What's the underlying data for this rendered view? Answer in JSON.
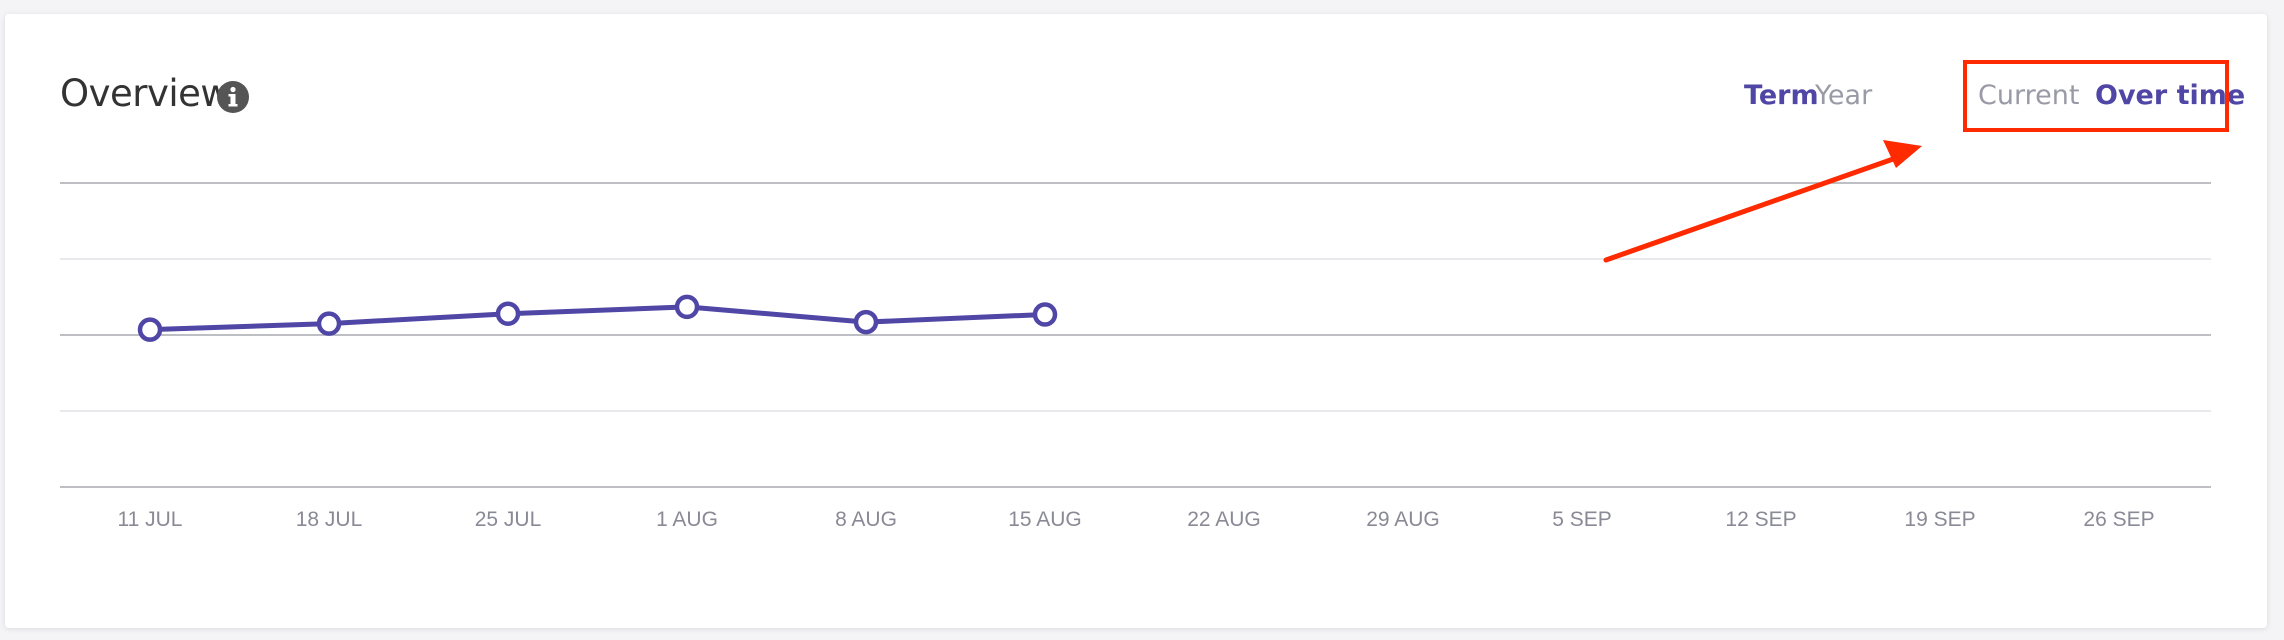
{
  "header": {
    "title": "Overview",
    "info_icon": "info-icon",
    "period_toggle": [
      {
        "label": "Term",
        "active": true
      },
      {
        "label": "Year",
        "active": false
      }
    ],
    "view_toggle": [
      {
        "label": "Current",
        "active": false
      },
      {
        "label": "Over time",
        "active": true
      }
    ]
  },
  "annotation": {
    "color": "#ff2a00"
  },
  "colors": {
    "accent": "#4f46a6",
    "muted": "#9a9aa6"
  },
  "chart_data": {
    "type": "line",
    "title": "",
    "xlabel": "",
    "ylabel": "",
    "x_ticks": [
      "11 JUL",
      "18 JUL",
      "25 JUL",
      "1 AUG",
      "8 AUG",
      "15 AUG",
      "22 AUG",
      "29 AUG",
      "5 SEP",
      "12 SEP",
      "19 SEP",
      "26 SEP"
    ],
    "grid": true,
    "ylim": [
      0,
      4
    ],
    "series": [
      {
        "color": "#4f46a6",
        "x": [
          "11 JUL",
          "18 JUL",
          "25 JUL",
          "1 AUG",
          "8 AUG",
          "15 AUG"
        ],
        "values": [
          2.07,
          2.15,
          2.28,
          2.37,
          2.17,
          2.27
        ]
      }
    ]
  }
}
